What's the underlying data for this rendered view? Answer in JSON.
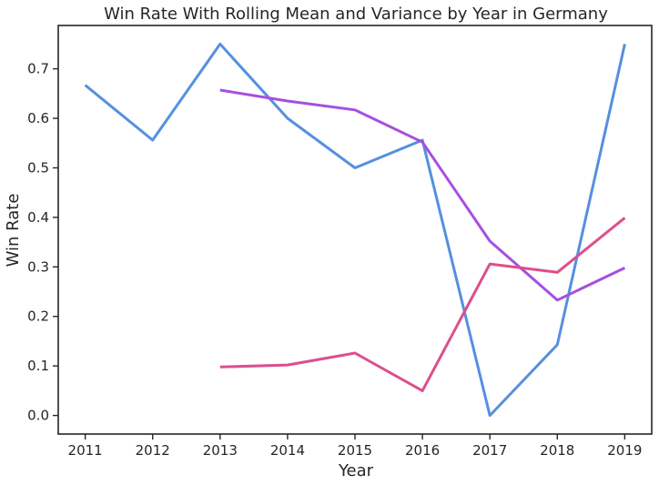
{
  "chart_data": {
    "type": "line",
    "title": "Win Rate With Rolling Mean and Variance by Year in Germany",
    "xlabel": "Year",
    "ylabel": "Win Rate",
    "x": [
      2011,
      2012,
      2013,
      2014,
      2015,
      2016,
      2017,
      2018,
      2019
    ],
    "xlim": [
      2010.6,
      2019.4
    ],
    "ylim": [
      -0.0375,
      0.7875
    ],
    "yticks": [
      0.0,
      0.1,
      0.2,
      0.3,
      0.4,
      0.5,
      0.6,
      0.7
    ],
    "grid": false,
    "legend": "none",
    "series": [
      {
        "color": "#5590e0",
        "values": [
          0.667,
          0.556,
          0.75,
          0.6,
          0.5,
          0.556,
          0.0,
          0.143,
          0.75
        ]
      },
      {
        "color": "#a64fe0",
        "values": [
          null,
          null,
          0.657,
          0.635,
          0.617,
          0.552,
          0.352,
          0.233,
          0.298
        ]
      },
      {
        "color": "#dc4f8c",
        "values": [
          null,
          null,
          0.098,
          0.102,
          0.126,
          0.05,
          0.306,
          0.289,
          0.399
        ]
      }
    ]
  }
}
